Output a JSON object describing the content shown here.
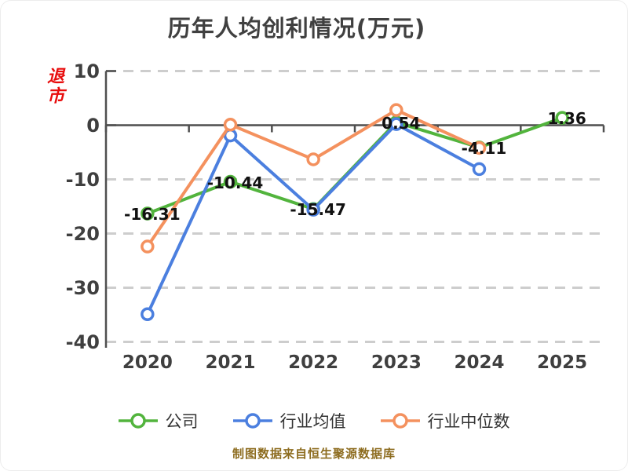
{
  "title": "历年人均创利情况(万元)",
  "delisted_tag": "退市",
  "footer": "制图数据来自恒生聚源数据库",
  "colors": {
    "company": "#52b43d",
    "industry_avg": "#4b7fdf",
    "industry_median": "#f4915e",
    "title_text": "#404040",
    "axis_line": "#4f4f4f",
    "grid_line": "#cdcdcd",
    "tick_label": "#3f3f3f",
    "data_label": "#111111",
    "footer_text": "#8d6c1f",
    "delisted_text": "#e80c0c",
    "marker_fill": "#ffffff"
  },
  "chart_data": {
    "type": "line",
    "title": "历年人均创利情况(万元)",
    "categories": [
      "2020",
      "2021",
      "2022",
      "2023",
      "2024",
      "2025"
    ],
    "yticks": [
      10,
      0,
      -10,
      -20,
      -30,
      -40
    ],
    "ylim": [
      -40,
      10
    ],
    "grid": "horizontal-dashed",
    "legend_position": "bottom",
    "series": [
      {
        "name": "公司",
        "color": "#52b43d",
        "values": [
          -16.31,
          -10.44,
          -15.47,
          0.54,
          -4.11,
          1.36
        ],
        "labels": [
          "-16.31",
          "-10.44",
          "-15.47",
          "0.54",
          "-4.11",
          "1.36"
        ]
      },
      {
        "name": "行业均值",
        "color": "#4b7fdf",
        "values": [
          -34.9,
          -1.9,
          -15.6,
          0.2,
          -8.1,
          null
        ],
        "labels": []
      },
      {
        "name": "行业中位数",
        "color": "#f4915e",
        "values": [
          -22.4,
          0.1,
          -6.3,
          2.8,
          -4.2,
          null
        ],
        "labels": []
      }
    ]
  }
}
